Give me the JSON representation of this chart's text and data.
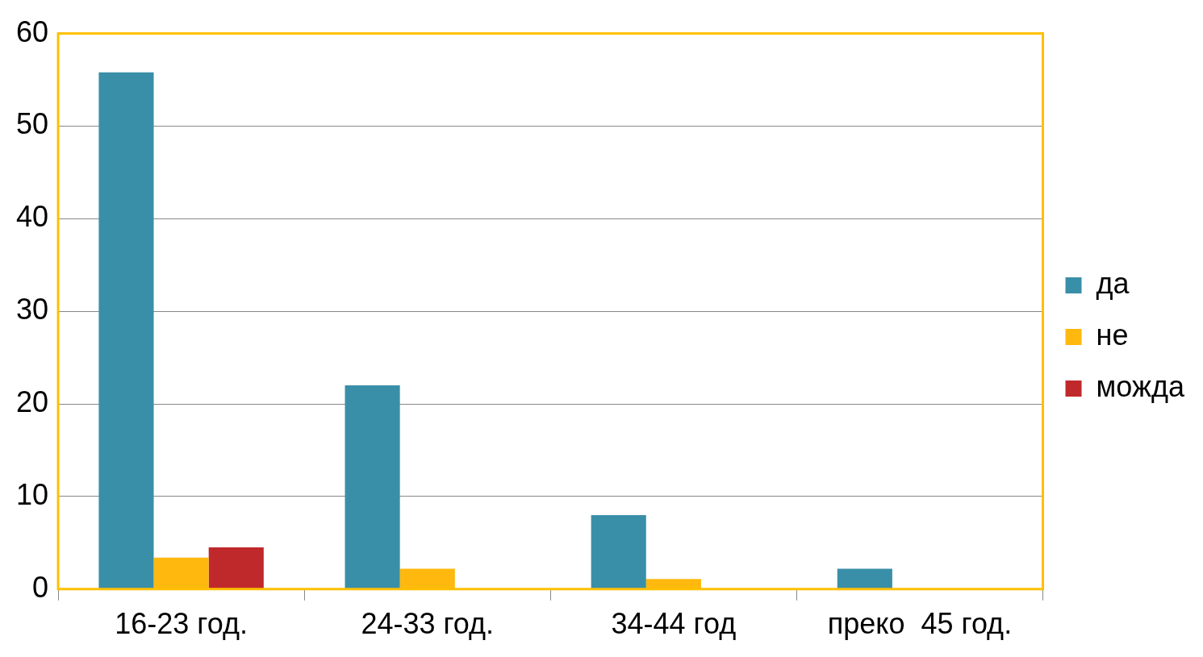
{
  "chart_data": {
    "type": "bar",
    "categories": [
      "16-23 год.",
      "24-33 год.",
      "34-44 год",
      "преко  45 год."
    ],
    "series": [
      {
        "name": "да",
        "color": "#3a8fa8",
        "values": [
          55.8,
          22,
          8,
          2.2
        ]
      },
      {
        "name": "не",
        "color": "#ffb80d",
        "values": [
          3.4,
          2.2,
          1.1,
          0
        ]
      },
      {
        "name": "можда",
        "color": "#c0292b",
        "values": [
          4.5,
          0,
          0,
          0
        ]
      }
    ],
    "ylim": [
      0,
      60
    ],
    "yticks": [
      0,
      10,
      20,
      30,
      40,
      50,
      60
    ],
    "grid": "y",
    "legend": "right"
  }
}
